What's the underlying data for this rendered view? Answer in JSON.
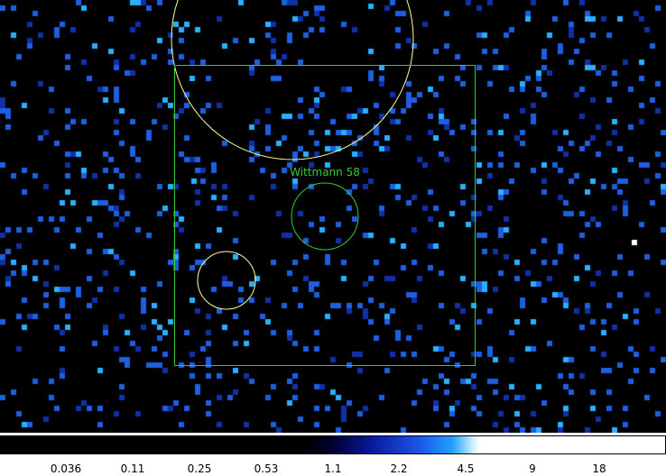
{
  "image": {
    "background_color": "#000000",
    "count_colors": {
      "low": "#1030a8",
      "mid": "#1d5fe0",
      "high": "#2ab0ff",
      "bright": "#ffffff"
    }
  },
  "regions": {
    "source_label": "Wittmann 58",
    "source_color": "#33cc33",
    "box_color": "#33cc33",
    "background_color": "#ffff99"
  },
  "colorbar": {
    "scale": "log",
    "ticks": [
      "0.036",
      "0.11",
      "0.25",
      "0.53",
      "1.1",
      "2.2",
      "4.5",
      "9",
      "18"
    ]
  }
}
